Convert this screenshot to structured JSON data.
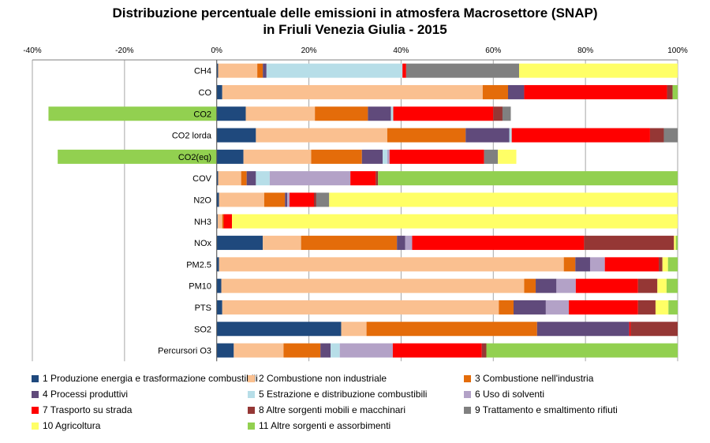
{
  "chart_data": {
    "type": "bar",
    "orientation": "horizontal",
    "stacked": true,
    "title": "Distribuzione percentuale delle emissioni in atmosfera Macrosettore (SNAP)",
    "subtitle": "in Friuli Venezia Giulia - 2015",
    "xlabel": "",
    "ylabel": "",
    "xlim": [
      -40,
      100
    ],
    "x_ticks": [
      -40,
      -20,
      0,
      20,
      40,
      60,
      80,
      100
    ],
    "x_tick_labels": [
      "-40%",
      "-20%",
      "0%",
      "20%",
      "40%",
      "60%",
      "80%",
      "100%"
    ],
    "grid": true,
    "legend_position": "bottom",
    "categories": [
      "CH4",
      "CO",
      "CO2",
      "CO2 lorda",
      "CO2(eq)",
      "COV",
      "N2O",
      "NH3",
      "NOx",
      "PM2.5",
      "PM10",
      "PTS",
      "SO2",
      "Percursori O3"
    ],
    "series": [
      {
        "name": "1 Produzione energia e trasformazione combustibili",
        "color": "#1f497d",
        "values": [
          0.3,
          1.2,
          6.3,
          8.5,
          5.8,
          0.3,
          0.5,
          0.2,
          10.0,
          0.5,
          1.0,
          1.2,
          27.0,
          3.7
        ]
      },
      {
        "name": "2 Combustione non industriale",
        "color": "#fac090",
        "values": [
          8.5,
          56.5,
          15.0,
          28.5,
          14.7,
          5.0,
          9.8,
          1.0,
          8.3,
          74.8,
          65.7,
          60.0,
          5.5,
          10.8
        ]
      },
      {
        "name": "3 Combustione nell'industria",
        "color": "#e46c0a",
        "values": [
          1.2,
          5.5,
          11.5,
          17.0,
          11.0,
          1.2,
          4.5,
          0.3,
          20.8,
          2.5,
          2.5,
          3.2,
          37.0,
          8.0
        ]
      },
      {
        "name": "4 Processi produttivi",
        "color": "#604a7b",
        "values": [
          0.8,
          3.5,
          5.0,
          9.5,
          4.5,
          2.0,
          0.5,
          0.0,
          1.8,
          3.2,
          4.5,
          7.0,
          20.0,
          2.2
        ]
      },
      {
        "name": "5 Estrazione e distribuzione combustibili",
        "color": "#b7dee8",
        "values": [
          29.5,
          0.0,
          0.5,
          0.5,
          1.0,
          3.0,
          0.0,
          0.0,
          0.0,
          0.0,
          0.0,
          0.0,
          0.0,
          2.0
        ]
      },
      {
        "name": "6 Uso di solventi",
        "color": "#b3a2c7",
        "values": [
          0.0,
          0.0,
          0.0,
          0.0,
          0.5,
          17.5,
          0.5,
          0.0,
          1.5,
          3.2,
          4.2,
          5.0,
          0.0,
          11.5
        ]
      },
      {
        "name": "7 Trasporto su strada",
        "color": "#ff0000",
        "values": [
          0.8,
          31.0,
          21.7,
          30.0,
          20.5,
          5.5,
          5.3,
          1.8,
          37.3,
          11.7,
          13.5,
          15.0,
          0.3,
          19.3
        ]
      },
      {
        "name": "8 Altre sorgenti mobili e macchinari",
        "color": "#953735",
        "values": [
          0.0,
          1.2,
          2.0,
          3.0,
          0.0,
          0.5,
          0.5,
          0.0,
          19.5,
          0.8,
          4.2,
          3.8,
          10.2,
          1.0
        ]
      },
      {
        "name": "9 Trattamento e smaltimento rifiuti",
        "color": "#808080",
        "values": [
          24.5,
          0.0,
          1.8,
          3.0,
          3.0,
          0.0,
          2.8,
          0.0,
          0.0,
          0.0,
          0.0,
          0.0,
          0.0,
          0.0
        ]
      },
      {
        "name": "10 Agricoltura",
        "color": "#ffff66",
        "values": [
          34.4,
          0.0,
          0.0,
          0.0,
          4.0,
          0.0,
          75.6,
          96.7,
          0.4,
          1.2,
          2.0,
          2.8,
          0.0,
          0.0
        ]
      },
      {
        "name": "11 Altre sorgenti e assorbimenti",
        "color": "#92d050",
        "values": [
          0.0,
          1.1,
          -36.5,
          0.0,
          -34.5,
          65.0,
          0.0,
          0.0,
          0.4,
          2.1,
          2.4,
          2.0,
          0.0,
          41.5
        ]
      }
    ]
  }
}
